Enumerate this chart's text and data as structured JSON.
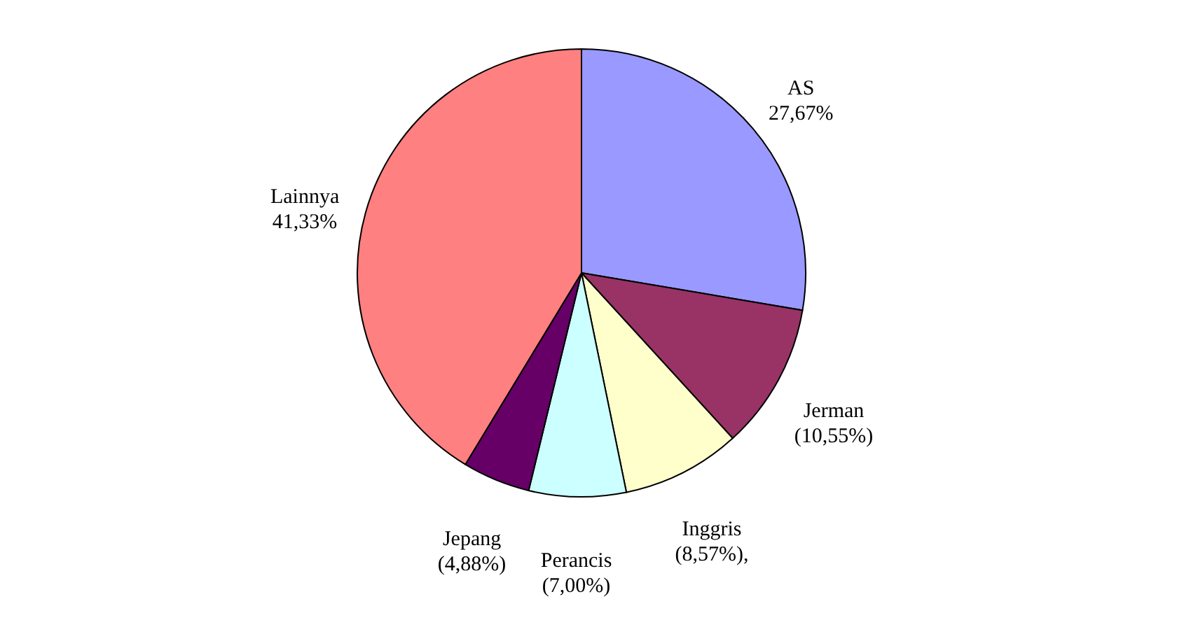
{
  "chart_data": {
    "type": "pie",
    "categories": [
      "AS",
      "Jerman",
      "Inggris",
      "Perancis",
      "Jepang",
      "Lainnya"
    ],
    "values": [
      27.67,
      10.55,
      8.57,
      7.0,
      4.88,
      41.33
    ],
    "colors": [
      "#9999ff",
      "#993366",
      "#ffffcc",
      "#ccffff",
      "#660066",
      "#ff8080"
    ],
    "value_labels": [
      "27,67%",
      "(10,55%)",
      "(8,57%),",
      "(7,00%)",
      "(4,88%)",
      "41,33%"
    ],
    "legend": false
  }
}
